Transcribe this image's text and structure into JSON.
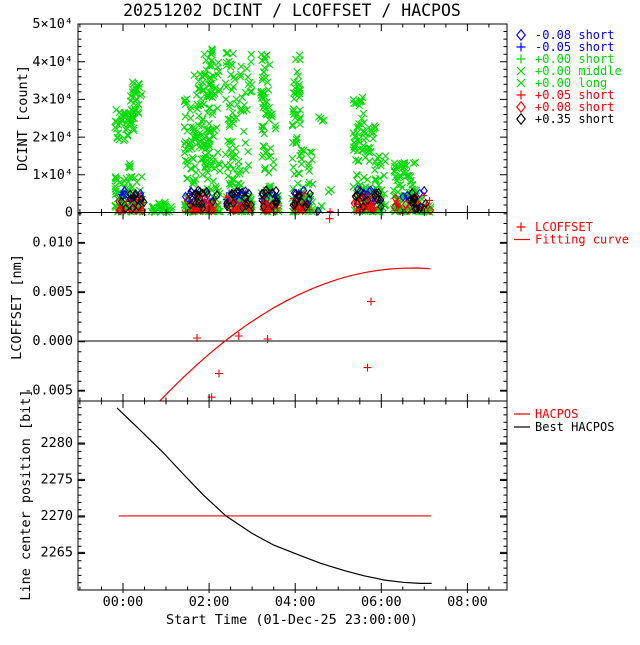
{
  "title": "20251202 DCINT / LCOFFSET / HACPOS",
  "colors": {
    "background": "#ffffff",
    "frame": "#000000",
    "blue": "#0000ff",
    "green": "#00dd00",
    "red": "#ff0000",
    "black": "#000000"
  },
  "xaxis": {
    "label": "Start Time (01-Dec-25 23:00:00)",
    "tick_labels": [
      "00:00",
      "02:00",
      "04:00",
      "06:00",
      "08:00"
    ],
    "major_hours": [
      0,
      2,
      4,
      6,
      8
    ],
    "minor_step_hours": 0.5,
    "range_hours": [
      -1.045,
      8.92
    ]
  },
  "chart_data": [
    {
      "type": "scatter",
      "ylabel": "DCINT [count]",
      "ylim": [
        0,
        50000
      ],
      "yticks": [
        {
          "v": 0,
          "label": "0"
        },
        {
          "v": 10000,
          "label": "1×10⁴"
        },
        {
          "v": 20000,
          "label": "2×10⁴"
        },
        {
          "v": 30000,
          "label": "3×10⁴"
        },
        {
          "v": 40000,
          "label": "4×10⁴"
        },
        {
          "v": 50000,
          "label": "5×10⁴"
        }
      ],
      "minor_step": 2000,
      "series": [
        {
          "name": "-0.08 short",
          "marker": "diamond",
          "color": "#0000ff",
          "clusters": [
            [
              -0.12,
              0.5,
              2500,
              6200,
              7,
              0
            ],
            [
              1.45,
              2.2,
              2500,
              6200,
              9,
              0
            ],
            [
              2.4,
              3.0,
              2500,
              6200,
              8,
              0
            ],
            [
              3.22,
              3.6,
              2500,
              6200,
              6,
              0
            ],
            [
              3.95,
              4.35,
              2500,
              6200,
              5,
              0
            ],
            [
              5.37,
              6.05,
              2500,
              6200,
              7,
              0
            ],
            [
              6.3,
              7.0,
              2500,
              6200,
              4,
              0
            ]
          ],
          "points": [
            [
              4.53,
              400
            ]
          ]
        },
        {
          "name": "-0.05 short",
          "marker": "plus",
          "color": "#0000ff",
          "clusters": [
            [
              -0.12,
              0.5,
              2000,
              5500,
              5,
              0
            ],
            [
              1.45,
              2.2,
              2000,
              5500,
              7,
              0
            ],
            [
              2.4,
              3.0,
              2000,
              5500,
              6,
              0
            ],
            [
              3.22,
              3.6,
              2000,
              5500,
              5,
              0
            ],
            [
              3.95,
              4.35,
              2000,
              5500,
              4,
              0
            ],
            [
              5.37,
              6.05,
              2000,
              5500,
              5,
              0
            ],
            [
              6.3,
              7.0,
              2000,
              5500,
              3,
              0
            ]
          ],
          "points": []
        },
        {
          "name": "+0.00 short",
          "marker": "plus",
          "color": "#00dd00",
          "clusters": [
            [
              -0.12,
              0.5,
              100,
              3500,
              8,
              1
            ],
            [
              1.45,
              2.2,
              100,
              3500,
              10,
              1
            ],
            [
              2.4,
              3.0,
              100,
              3500,
              9,
              1
            ],
            [
              3.22,
              3.6,
              100,
              3500,
              8,
              1
            ],
            [
              3.95,
              4.35,
              100,
              3500,
              6,
              1
            ],
            [
              5.37,
              6.05,
              100,
              3500,
              8,
              1
            ],
            [
              6.3,
              7.15,
              100,
              3500,
              7,
              1
            ]
          ],
          "points": []
        },
        {
          "name": "+0.00 middle",
          "marker": "x",
          "color": "#00dd00",
          "clusters": [
            [
              -0.19,
              0.28,
              19000,
              27500,
              45,
              0
            ],
            [
              0.1,
              0.2,
              11000,
              15000,
              4,
              0
            ],
            [
              0.16,
              0.45,
              26000,
              35200,
              30,
              0
            ],
            [
              1.42,
              1.65,
              3000,
              31500,
              38,
              0
            ],
            [
              1.63,
              1.87,
              5000,
              37000,
              42,
              0
            ],
            [
              1.85,
              2.08,
              12000,
              43000,
              45,
              0
            ],
            [
              2.0,
              2.26,
              18000,
              43500,
              28,
              0
            ],
            [
              2.38,
              2.62,
              4000,
              42500,
              48,
              0
            ],
            [
              2.6,
              3.0,
              4000,
              42000,
              40,
              0
            ],
            [
              3.2,
              3.42,
              26000,
              42000,
              30,
              0
            ],
            [
              3.2,
              3.55,
              6000,
              27000,
              30,
              0
            ],
            [
              3.93,
              4.12,
              6000,
              42000,
              42,
              0
            ],
            [
              4.1,
              4.42,
              2000,
              17000,
              22,
              0
            ],
            [
              4.5,
              4.68,
              23000,
              27500,
              4,
              0
            ],
            [
              4.74,
              4.86,
              5000,
              6200,
              3,
              0
            ],
            [
              5.35,
              5.6,
              6000,
              31000,
              45,
              0
            ],
            [
              5.58,
              5.88,
              3000,
              23000,
              30,
              0
            ],
            [
              5.86,
              6.1,
              2000,
              15000,
              18,
              0
            ],
            [
              6.28,
              6.82,
              1500,
              13500,
              55,
              0
            ]
          ],
          "points": []
        },
        {
          "name": "+0.00 long",
          "marker": "x",
          "color": "#00dd00",
          "clusters": [
            [
              -0.19,
              0.45,
              2500,
              9500,
              45,
              0
            ],
            [
              -0.19,
              0.52,
              100,
              2500,
              30,
              1
            ],
            [
              0.63,
              1.14,
              50,
              2800,
              28,
              1
            ],
            [
              1.42,
              2.26,
              200,
              7000,
              65,
              1
            ],
            [
              1.9,
              2.26,
              7000,
              16000,
              18,
              0
            ],
            [
              2.38,
              3.0,
              200,
              5000,
              55,
              1
            ],
            [
              3.2,
              3.62,
              200,
              6000,
              40,
              1
            ],
            [
              3.93,
              4.42,
              200,
              5000,
              30,
              1
            ],
            [
              4.5,
              4.62,
              200,
              2000,
              4,
              1
            ],
            [
              5.35,
              6.1,
              200,
              6000,
              48,
              1
            ],
            [
              6.28,
              7.0,
              200,
              4500,
              42,
              1
            ],
            [
              6.95,
              7.2,
              100,
              1800,
              10,
              1
            ]
          ],
          "points": []
        },
        {
          "name": "+0.05 short",
          "marker": "plus",
          "color": "#ff0000",
          "clusters": [
            [
              -0.12,
              0.5,
              400,
              5000,
              12,
              1
            ],
            [
              1.45,
              2.2,
              400,
              5000,
              16,
              1
            ],
            [
              2.4,
              3.0,
              400,
              5000,
              14,
              1
            ],
            [
              3.22,
              3.6,
              400,
              5000,
              12,
              1
            ],
            [
              3.95,
              4.35,
              400,
              5000,
              10,
              1
            ],
            [
              5.37,
              6.05,
              400,
              5000,
              14,
              1
            ],
            [
              6.3,
              7.15,
              400,
              5000,
              12,
              1
            ]
          ],
          "points": [
            [
              4.81,
              300
            ]
          ]
        },
        {
          "name": "+0.08 short",
          "marker": "diamond",
          "color": "#ff0000",
          "clusters": [
            [
              -0.12,
              0.5,
              500,
              4200,
              10,
              1
            ],
            [
              1.45,
              2.2,
              500,
              4200,
              14,
              1
            ],
            [
              2.4,
              3.0,
              500,
              4200,
              12,
              1
            ],
            [
              3.22,
              3.6,
              500,
              4200,
              10,
              1
            ],
            [
              3.95,
              4.35,
              500,
              4200,
              8,
              1
            ],
            [
              5.37,
              6.05,
              500,
              4200,
              12,
              1
            ],
            [
              6.3,
              7.15,
              500,
              4200,
              10,
              1
            ]
          ],
          "points": []
        },
        {
          "name": "+0.35 short",
          "marker": "diamond",
          "color": "#000000",
          "clusters": [
            [
              -0.12,
              0.5,
              800,
              6000,
              12,
              0
            ],
            [
              1.45,
              2.2,
              800,
              6000,
              16,
              0
            ],
            [
              2.4,
              3.0,
              800,
              6000,
              14,
              0
            ],
            [
              3.22,
              3.6,
              800,
              6000,
              12,
              0
            ],
            [
              3.95,
              4.35,
              800,
              6000,
              10,
              0
            ],
            [
              5.37,
              6.05,
              800,
              6000,
              14,
              0
            ],
            [
              6.3,
              7.15,
              800,
              6000,
              12,
              0
            ]
          ],
          "points": []
        }
      ]
    },
    {
      "type": "scatter+line",
      "ylabel": "LCOFFSET [nm]",
      "ylim": [
        -0.00609,
        0.01303
      ],
      "yticks": [
        {
          "v": -0.005,
          "label": "-0.005"
        },
        {
          "v": 0.0,
          "label": "0.000"
        },
        {
          "v": 0.005,
          "label": "0.005"
        },
        {
          "v": 0.01,
          "label": "0.010"
        }
      ],
      "minor_step": 0.001,
      "zero_line": 0.0,
      "points": [
        [
          1.72,
          0.0003
        ],
        [
          2.06,
          -0.0057
        ],
        [
          2.23,
          -0.0033
        ],
        [
          2.69,
          0.0005
        ],
        [
          3.36,
          0.0002
        ],
        [
          4.8,
          0.0124
        ],
        [
          5.68,
          -0.0027
        ],
        [
          5.76,
          0.004
        ]
      ],
      "fit_curve": [
        [
          0.86,
          -0.00607
        ],
        [
          1.1,
          -0.00499
        ],
        [
          1.4,
          -0.0037
        ],
        [
          1.7,
          -0.00248
        ],
        [
          2.0,
          -0.00133
        ],
        [
          2.3,
          -0.00025
        ],
        [
          2.6,
          0.00076
        ],
        [
          2.9,
          0.0017
        ],
        [
          3.2,
          0.00256
        ],
        [
          3.5,
          0.00336
        ],
        [
          3.8,
          0.00408
        ],
        [
          4.1,
          0.00473
        ],
        [
          4.4,
          0.00531
        ],
        [
          4.7,
          0.00582
        ],
        [
          5.0,
          0.00626
        ],
        [
          5.3,
          0.00663
        ],
        [
          5.6,
          0.00692
        ],
        [
          5.9,
          0.00715
        ],
        [
          6.2,
          0.0073
        ],
        [
          6.5,
          0.00738
        ],
        [
          6.8,
          0.0074
        ],
        [
          7.0,
          0.00736
        ],
        [
          7.14,
          0.00732
        ]
      ],
      "legend": [
        {
          "label": "LCOFFSET",
          "color": "#ff0000",
          "marker": "plus"
        },
        {
          "label": "Fitting curve",
          "color": "#ff0000",
          "marker": "line"
        }
      ]
    },
    {
      "type": "line",
      "ylabel": "Line center position [bit]",
      "ylim": [
        2259.85,
        2285.75
      ],
      "yticks": [
        {
          "v": 2265,
          "label": "2265"
        },
        {
          "v": 2270,
          "label": "2270"
        },
        {
          "v": 2275,
          "label": "2275"
        },
        {
          "v": 2280,
          "label": "2280"
        }
      ],
      "minor_step": 1,
      "hacpos_value": 2270,
      "hacpos_range_hours": [
        -0.1,
        7.15
      ],
      "best_hacpos": [
        [
          -0.14,
          2284.8
        ],
        [
          0.46,
          2281.4
        ],
        [
          0.93,
          2278.7
        ],
        [
          1.39,
          2275.8
        ],
        [
          1.86,
          2272.9
        ],
        [
          2.39,
          2270.0
        ],
        [
          3.0,
          2267.6
        ],
        [
          3.5,
          2266.0
        ],
        [
          4.06,
          2264.7
        ],
        [
          4.6,
          2263.5
        ],
        [
          5.15,
          2262.5
        ],
        [
          5.6,
          2261.8
        ],
        [
          6.08,
          2261.2
        ],
        [
          6.5,
          2260.9
        ],
        [
          6.9,
          2260.75
        ],
        [
          7.17,
          2260.75
        ]
      ],
      "legend": [
        {
          "label": "HACPOS",
          "color": "#ff0000",
          "marker": "line"
        },
        {
          "label": "Best HACPOS",
          "color": "#000000",
          "marker": "line"
        }
      ]
    }
  ]
}
